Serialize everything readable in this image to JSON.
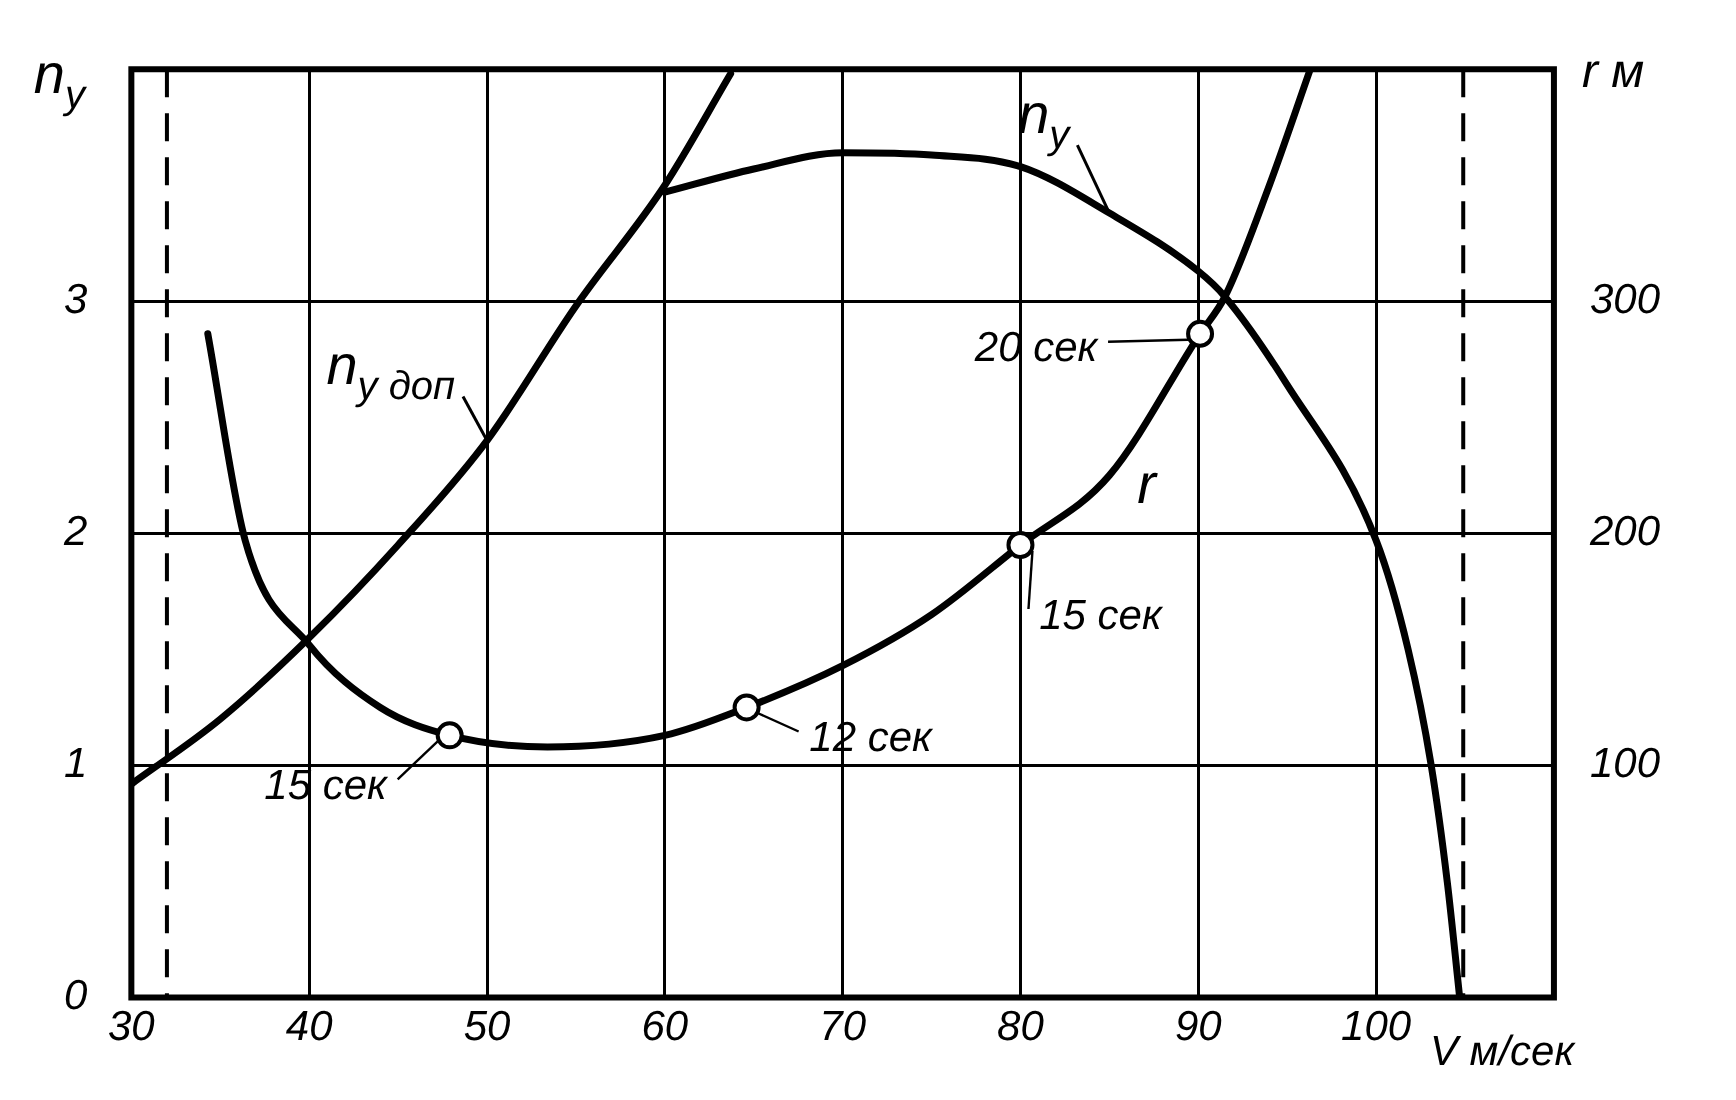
{
  "chart_data": {
    "type": "line",
    "xlabel": "V м/сек",
    "ylabel": "n$_{у}$",
    "y2label": "r м",
    "xlim": [
      30,
      110
    ],
    "xticks": [
      30,
      40,
      50,
      60,
      70,
      80,
      90,
      100
    ],
    "ylim": [
      0,
      4
    ],
    "yticks": [
      0,
      1,
      2,
      3
    ],
    "y2lim": [
      0,
      400
    ],
    "y2ticks": [
      100,
      200,
      300
    ],
    "grid": true,
    "legend": false,
    "marker": "none",
    "line_style": "solid",
    "ref_lines": [
      {
        "axis": "x",
        "value": 32,
        "line_style": "dashed"
      },
      {
        "axis": "x",
        "value": 104.9,
        "line_style": "dashed"
      }
    ],
    "series": [
      {
        "name": "n$_{у доп}$",
        "color": "#000000",
        "x": [
          30,
          35,
          40,
          45,
          50,
          55,
          60,
          63.7
        ],
        "values": [
          0.92,
          1.2,
          1.55,
          1.95,
          2.4,
          2.98,
          3.5,
          3.98
        ]
      },
      {
        "name": "n$_{у}$",
        "color": "#000000",
        "x": [
          60,
          65,
          70,
          75,
          80,
          85,
          90,
          91.5,
          95,
          100,
          101.8,
          103.1,
          104,
          104.7
        ],
        "values": [
          3.47,
          3.57,
          3.64,
          3.63,
          3.58,
          3.38,
          3.13,
          3.02,
          2.64,
          1.97,
          1.5,
          1.0,
          0.5,
          0
        ]
      },
      {
        "name": "r",
        "color": "#000000",
        "axis": "y2",
        "x": [
          34.3,
          36.4,
          40,
          44,
          47.9,
          53.4,
          60,
          64.6,
          70,
          75,
          80,
          85,
          90.1,
          91.5,
          94,
          96.3
        ],
        "values": [
          286,
          197,
          152,
          125,
          113,
          108,
          113,
          125,
          143,
          165,
          195,
          225,
          286,
          302,
          350,
          400
        ]
      },
      {
        "type": "scatter",
        "color": "#000000",
        "axis": "y2",
        "marker": "circle",
        "x": [
          47.9,
          64.6,
          80,
          90.1
        ],
        "values": [
          113,
          125,
          195,
          286
        ]
      }
    ],
    "annotations": [
      "15 сек",
      "12 сек",
      "15 сек",
      "20 сек"
    ]
  }
}
